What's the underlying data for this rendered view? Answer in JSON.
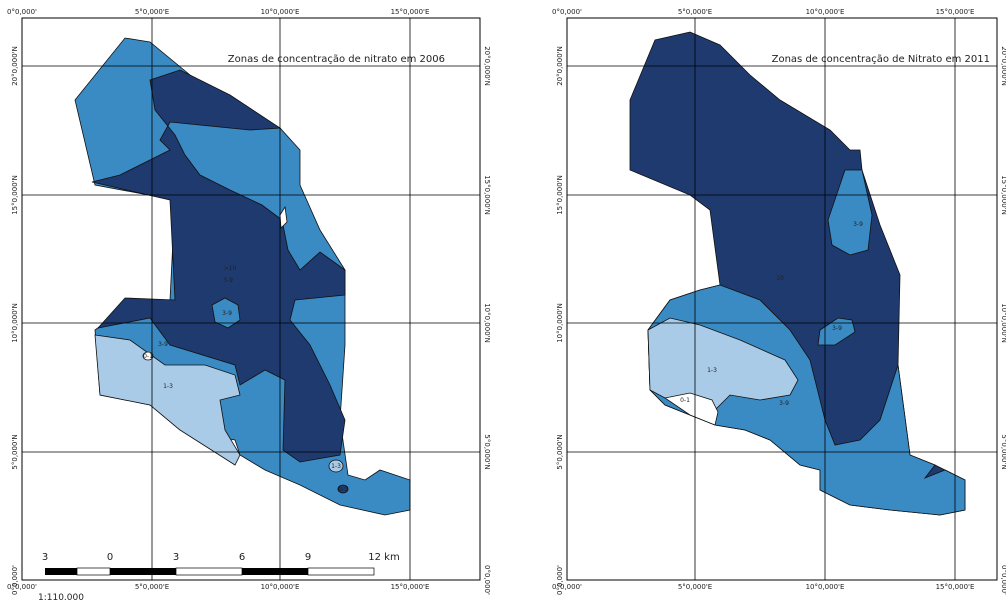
{
  "maps": [
    {
      "title": "Zonas de concentração de nitrato em 2006",
      "top_labels": [
        "0°0,000'",
        "5°0,000'E",
        "10°0,000'E",
        "15°0,000'E"
      ],
      "bottom_labels": [
        "0°0,000'",
        "5°0,000'E",
        "10°0,000'E",
        "15°0,000'E"
      ],
      "left_labels": [
        "20°0,000'N",
        "15°0,000'N",
        "10°0,000'N",
        "5°0,000'N",
        "0°0,000'"
      ],
      "right_labels": [
        "20°0,000'N",
        "15°0,000'N",
        "10°0,000'N",
        "5°0,000'N",
        "0°0,000'"
      ],
      "zone_labels": [
        ">10",
        "3-9",
        "3-9",
        "3-9",
        "0-1",
        "1-3",
        "1-3",
        "0-1"
      ]
    },
    {
      "title": "Zonas de concentração de Nitrato em 2011",
      "top_labels": [
        "0°0,000'",
        "5°0,000'E",
        "10°0,000'E",
        "15°0,000'E"
      ],
      "bottom_labels": [
        "0°0,000'",
        "5°0,000'E",
        "10°0,000'E",
        "15°0,000'E"
      ],
      "left_labels": [
        "20°0,000'N",
        "15°0,000'N",
        "10°0,000'N",
        "5°0,000'N",
        "0°0,000'"
      ],
      "right_labels": [
        "20°0,000'N",
        "15°0,000'N",
        "10°0,000'N",
        "5°0,000'N",
        "0°0,000'"
      ],
      "zone_labels": [
        "3-9",
        "10",
        "3-9",
        "1-3",
        "0-1",
        "3-9"
      ]
    }
  ],
  "scale_bar": {
    "labels": [
      "3",
      "0",
      "3",
      "6",
      "9",
      "12 km"
    ],
    "ratio": "1:110.000"
  }
}
